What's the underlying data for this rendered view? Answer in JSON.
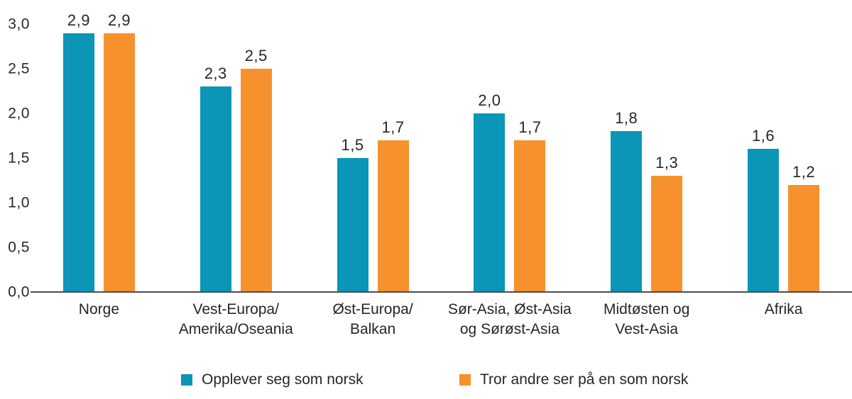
{
  "chart_data": {
    "type": "bar",
    "title": "",
    "xlabel": "",
    "ylabel": "",
    "ylim": [
      0.0,
      3.0
    ],
    "grid": false,
    "legend_position": "bottom",
    "decimal_separator": ",",
    "y_ticks": [
      {
        "value": 3.0,
        "label": "3,0"
      },
      {
        "value": 2.5,
        "label": "2,5"
      },
      {
        "value": 2.0,
        "label": "2,0"
      },
      {
        "value": 1.5,
        "label": "1,5"
      },
      {
        "value": 1.0,
        "label": "1,0"
      },
      {
        "value": 0.5,
        "label": "0,5"
      },
      {
        "value": 0.0,
        "label": "0,0"
      }
    ],
    "categories": [
      "Norge",
      "Vest-Europa/\nAmerika/Oseania",
      "Øst-Europa/\nBalkan",
      "Sør-Asia, Øst-Asia\nog Sørøst-Asia",
      "Midtøsten og\nVest-Asia",
      "Afrika"
    ],
    "series": [
      {
        "name": "Opplever seg som norsk",
        "color": "#0b95b7",
        "values": [
          2.9,
          2.3,
          1.5,
          2.0,
          1.8,
          1.6
        ],
        "labels": [
          "2,9",
          "2,3",
          "1,5",
          "2,0",
          "1,8",
          "1,6"
        ]
      },
      {
        "name": "Tror andre ser på en som norsk",
        "color": "#f6912d",
        "values": [
          2.9,
          2.5,
          1.7,
          1.7,
          1.3,
          1.2
        ],
        "labels": [
          "2,9",
          "2,5",
          "1,7",
          "1,7",
          "1,3",
          "1,2"
        ]
      }
    ]
  },
  "layout_constants_note": ""
}
